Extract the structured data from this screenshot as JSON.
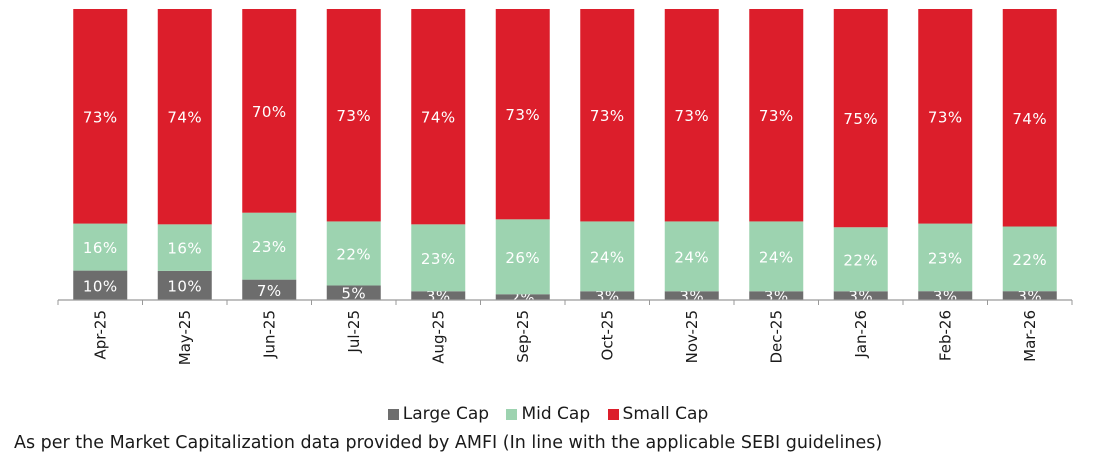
{
  "chart_data": {
    "type": "bar",
    "stacked": true,
    "normalized": true,
    "categories": [
      "Apr-25",
      "May-25",
      "Jun-25",
      "Jul-25",
      "Aug-25",
      "Sep-25",
      "Oct-25",
      "Nov-25",
      "Dec-25",
      "Jan-26",
      "Feb-26",
      "Mar-26"
    ],
    "series": [
      {
        "name": "Large Cap",
        "color": "#6d6d6d",
        "values": [
          10,
          10,
          7,
          5,
          3,
          2,
          3,
          3,
          3,
          3,
          3,
          3
        ]
      },
      {
        "name": "Mid Cap",
        "color": "#9dd3b0",
        "values": [
          16,
          16,
          23,
          22,
          23,
          26,
          24,
          24,
          24,
          22,
          23,
          22
        ]
      },
      {
        "name": "Small Cap",
        "color": "#dc1e2b",
        "values": [
          73,
          74,
          70,
          73,
          74,
          73,
          73,
          73,
          73,
          75,
          73,
          74
        ]
      }
    ],
    "value_suffix": "%",
    "xlabel": "",
    "ylabel": "",
    "legend_position": "bottom"
  },
  "legend": {
    "items": [
      {
        "label": "Large Cap",
        "color": "#6d6d6d"
      },
      {
        "label": "Mid Cap",
        "color": "#9dd3b0"
      },
      {
        "label": "Small Cap",
        "color": "#dc1e2b"
      }
    ]
  },
  "footnote": "As per the Market Capitalization data provided by AMFI (In line with the applicable SEBI guidelines)"
}
